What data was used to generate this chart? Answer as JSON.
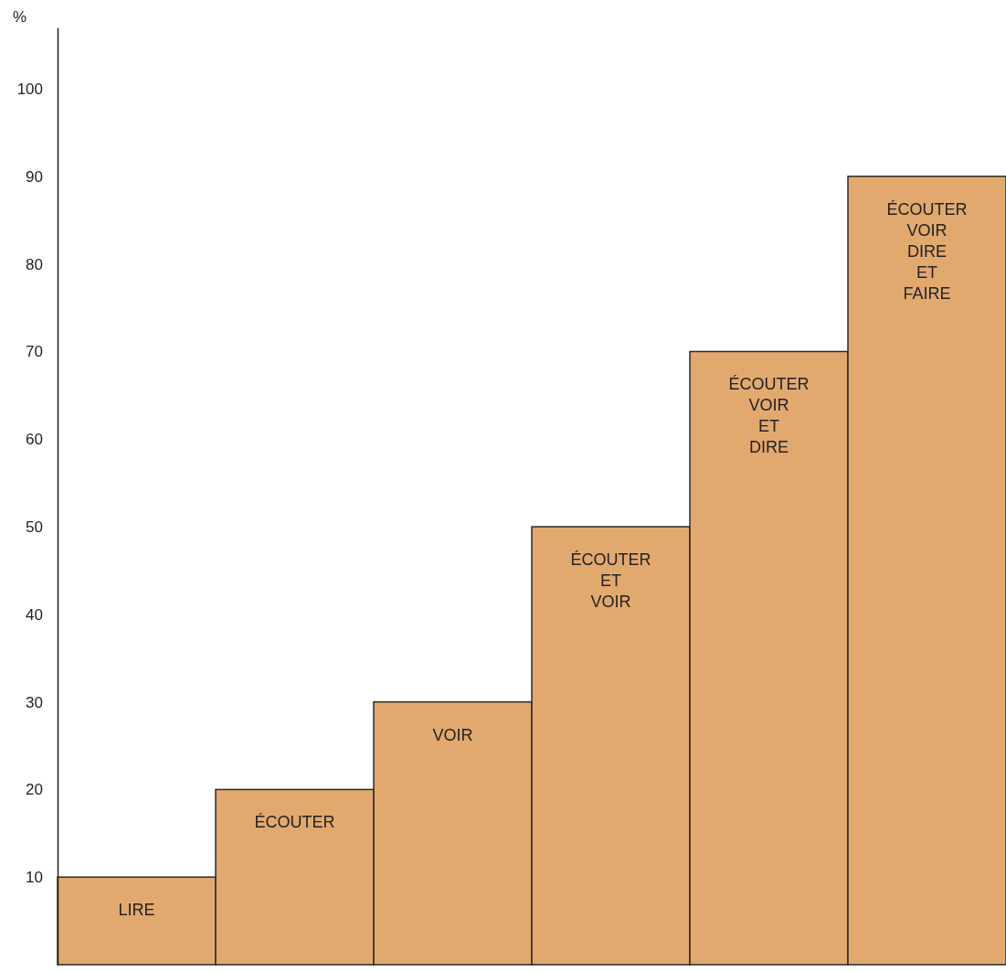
{
  "chart_data": {
    "type": "bar",
    "ylabel": "%",
    "categories": [
      "LIRE",
      "ÉCOUTER",
      "VOIR",
      "ÉCOUTER\nET\nVOIR",
      "ÉCOUTER\nVOIR\nET\nDIRE",
      "ÉCOUTER\nVOIR\nDIRE\nET\nFAIRE"
    ],
    "values": [
      10,
      20,
      30,
      50,
      70,
      90
    ],
    "color": "#e2a96f",
    "ylim": [
      0,
      107
    ],
    "yticks": [
      10,
      20,
      30,
      40,
      50,
      60,
      70,
      80,
      90,
      100
    ]
  }
}
